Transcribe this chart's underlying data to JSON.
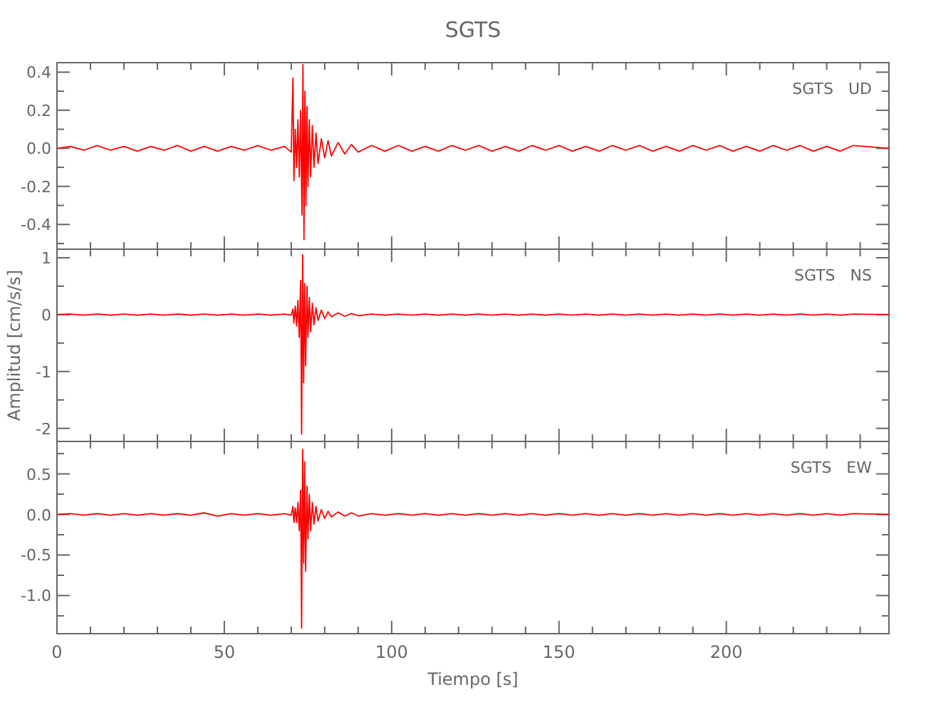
{
  "chart_data": [
    {
      "type": "line",
      "title": "SGTS",
      "annotations": [
        "SGTS   UD"
      ],
      "tick_labels": "y",
      "grid": false,
      "xlim": [
        0,
        248.6
      ],
      "ylim": [
        -0.53,
        0.45
      ],
      "xticks": [
        0,
        {
          "value": 10,
          "label": null
        },
        {
          "value": 20,
          "label": null
        },
        {
          "value": 30,
          "label": null
        },
        {
          "value": 40,
          "label": null
        },
        50,
        {
          "value": 60,
          "label": null
        },
        {
          "value": 70,
          "label": null
        },
        {
          "value": 80,
          "label": null
        },
        {
          "value": 90,
          "label": null
        },
        100,
        {
          "value": 110,
          "label": null
        },
        {
          "value": 120,
          "label": null
        },
        {
          "value": 130,
          "label": null
        },
        {
          "value": 140,
          "label": null
        },
        150,
        {
          "value": 160,
          "label": null
        },
        {
          "value": 170,
          "label": null
        },
        {
          "value": 180,
          "label": null
        },
        {
          "value": 190,
          "label": null
        },
        200,
        {
          "value": 210,
          "label": null
        },
        {
          "value": 220,
          "label": null
        },
        {
          "value": 230,
          "label": null
        },
        {
          "value": 240,
          "label": null
        }
      ],
      "yticks": [
        {
          "value": -0.5,
          "label": null
        },
        -0.4,
        {
          "value": -0.3,
          "label": null
        },
        -0.2,
        {
          "value": -0.1,
          "label": null
        },
        {
          "value": 0,
          "label": "0.0"
        },
        {
          "value": 0.1,
          "label": null
        },
        0.2,
        {
          "value": 0.3,
          "label": null
        },
        0.4
      ],
      "x": [
        0,
        4,
        8,
        12,
        16,
        20,
        24,
        28,
        32,
        36,
        40,
        44,
        48,
        52,
        56,
        60,
        64,
        68,
        70,
        70.5,
        70.8,
        71.2,
        71.6,
        72,
        72.4,
        72.8,
        73.2,
        73.5,
        73.8,
        74.1,
        74.4,
        74.7,
        75,
        75.4,
        75.8,
        76.3,
        76.8,
        77.4,
        78,
        79,
        80,
        81,
        82,
        84,
        86,
        88,
        90,
        94,
        98,
        102,
        106,
        110,
        114,
        118,
        122,
        126,
        130,
        134,
        138,
        142,
        146,
        150,
        154,
        158,
        162,
        166,
        170,
        174,
        178,
        182,
        186,
        190,
        194,
        198,
        202,
        206,
        210,
        214,
        218,
        222,
        226,
        230,
        234,
        238,
        248.6
      ],
      "series": [
        {
          "color": "#ff0000",
          "values": [
            0,
            0.01,
            -0.01,
            0.015,
            -0.01,
            0.01,
            -0.015,
            0.01,
            -0.01,
            0.015,
            -0.015,
            0.01,
            -0.015,
            0.01,
            -0.01,
            0.015,
            -0.01,
            0.01,
            -0.02,
            0.37,
            -0.17,
            0.1,
            -0.1,
            0.15,
            -0.15,
            0.2,
            -0.35,
            0.44,
            -0.48,
            0.3,
            -0.3,
            0.22,
            -0.2,
            0.15,
            -0.15,
            0.12,
            -0.1,
            0.08,
            -0.08,
            0.05,
            -0.05,
            0.04,
            -0.04,
            0.03,
            -0.03,
            0.02,
            -0.02,
            0.015,
            -0.015,
            0.015,
            -0.015,
            0.01,
            -0.015,
            0.015,
            -0.01,
            0.015,
            -0.015,
            0.01,
            -0.015,
            0.015,
            -0.01,
            0.015,
            -0.015,
            0.01,
            -0.015,
            0.015,
            -0.01,
            0.015,
            -0.015,
            0.01,
            -0.015,
            0.015,
            -0.01,
            0.015,
            -0.015,
            0.01,
            -0.015,
            0.015,
            -0.01,
            0.015,
            -0.015,
            0.01,
            -0.015,
            0.015,
            0
          ]
        }
      ]
    },
    {
      "type": "line",
      "ylabel": "Amplitud [cm/s/s]",
      "annotations": [
        "SGTS   NS"
      ],
      "tick_labels": "y",
      "grid": false,
      "xlim": [
        0,
        248.6
      ],
      "ylim": [
        -2.23,
        1.15
      ],
      "xticks": [
        0,
        {
          "value": 10,
          "label": null
        },
        {
          "value": 20,
          "label": null
        },
        {
          "value": 30,
          "label": null
        },
        {
          "value": 40,
          "label": null
        },
        50,
        {
          "value": 60,
          "label": null
        },
        {
          "value": 70,
          "label": null
        },
        {
          "value": 80,
          "label": null
        },
        {
          "value": 90,
          "label": null
        },
        100,
        {
          "value": 110,
          "label": null
        },
        {
          "value": 120,
          "label": null
        },
        {
          "value": 130,
          "label": null
        },
        {
          "value": 140,
          "label": null
        },
        150,
        {
          "value": 160,
          "label": null
        },
        {
          "value": 170,
          "label": null
        },
        {
          "value": 180,
          "label": null
        },
        {
          "value": 190,
          "label": null
        },
        200,
        {
          "value": 210,
          "label": null
        },
        {
          "value": 220,
          "label": null
        },
        {
          "value": 230,
          "label": null
        },
        {
          "value": 240,
          "label": null
        }
      ],
      "yticks": [
        -2,
        {
          "value": -1.5,
          "label": null
        },
        -1,
        {
          "value": -0.5,
          "label": null
        },
        0,
        {
          "value": 0.5,
          "label": null
        },
        1
      ],
      "x": [
        0,
        4,
        8,
        12,
        16,
        20,
        24,
        28,
        32,
        36,
        40,
        44,
        48,
        52,
        56,
        60,
        64,
        68,
        70,
        70.5,
        70.8,
        71.2,
        71.6,
        72,
        72.4,
        72.8,
        73.1,
        73.4,
        73.7,
        74,
        74.3,
        74.7,
        75,
        75.4,
        75.8,
        76.3,
        76.8,
        77.4,
        78,
        79,
        80,
        81,
        82,
        84,
        86,
        88,
        90,
        94,
        98,
        102,
        106,
        110,
        114,
        118,
        122,
        126,
        130,
        134,
        138,
        142,
        146,
        150,
        154,
        158,
        162,
        166,
        170,
        174,
        178,
        182,
        186,
        190,
        194,
        198,
        202,
        206,
        210,
        214,
        218,
        222,
        226,
        230,
        234,
        238,
        248.6
      ],
      "series": [
        {
          "color": "#ff0000",
          "values": [
            0,
            0.01,
            -0.01,
            0.01,
            -0.01,
            0.01,
            -0.01,
            0.01,
            -0.01,
            0.01,
            -0.01,
            0.01,
            -0.01,
            0.01,
            -0.01,
            0.01,
            -0.01,
            0.01,
            -0.01,
            0.1,
            -0.15,
            0.15,
            -0.2,
            0.25,
            -0.4,
            0.6,
            -2.1,
            1.05,
            -1.2,
            0.55,
            -0.9,
            0.5,
            -0.4,
            0.3,
            -0.3,
            0.2,
            -0.18,
            0.12,
            -0.1,
            0.08,
            -0.07,
            0.05,
            -0.04,
            0.03,
            -0.03,
            0.02,
            -0.02,
            0.01,
            -0.01,
            0.01,
            -0.01,
            0.01,
            -0.01,
            0.01,
            -0.01,
            0.01,
            -0.01,
            0.01,
            -0.01,
            0.01,
            -0.01,
            0.01,
            -0.01,
            0.01,
            -0.01,
            0.01,
            -0.01,
            0.01,
            -0.01,
            0.01,
            -0.01,
            0.01,
            -0.01,
            0.01,
            -0.01,
            0.01,
            -0.01,
            0.01,
            -0.01,
            0.01,
            -0.01,
            0.01,
            -0.01,
            0.01,
            0
          ]
        }
      ]
    },
    {
      "type": "line",
      "xlabel": "Tiempo [s]",
      "annotations": [
        "SGTS   EW"
      ],
      "grid": false,
      "xlim": [
        0,
        248.6
      ],
      "ylim": [
        -1.47,
        0.9
      ],
      "xticks": [
        0,
        {
          "value": 10,
          "label": null
        },
        {
          "value": 20,
          "label": null
        },
        {
          "value": 30,
          "label": null
        },
        {
          "value": 40,
          "label": null
        },
        50,
        {
          "value": 60,
          "label": null
        },
        {
          "value": 70,
          "label": null
        },
        {
          "value": 80,
          "label": null
        },
        {
          "value": 90,
          "label": null
        },
        100,
        {
          "value": 110,
          "label": null
        },
        {
          "value": 120,
          "label": null
        },
        {
          "value": 130,
          "label": null
        },
        {
          "value": 140,
          "label": null
        },
        150,
        {
          "value": 160,
          "label": null
        },
        {
          "value": 170,
          "label": null
        },
        {
          "value": 180,
          "label": null
        },
        {
          "value": 190,
          "label": null
        },
        200,
        {
          "value": 210,
          "label": null
        },
        {
          "value": 220,
          "label": null
        },
        {
          "value": 230,
          "label": null
        },
        {
          "value": 240,
          "label": null
        }
      ],
      "yticks": [
        {
          "value": -1.25,
          "label": null
        },
        {
          "value": -1,
          "label": "-1.0"
        },
        {
          "value": -0.75,
          "label": null
        },
        -0.5,
        {
          "value": -0.25,
          "label": null
        },
        {
          "value": 0,
          "label": "0.0"
        },
        {
          "value": 0.25,
          "label": null
        },
        0.5,
        {
          "value": 0.75,
          "label": null
        }
      ],
      "x": [
        0,
        4,
        8,
        12,
        16,
        20,
        24,
        28,
        32,
        36,
        40,
        44,
        48,
        52,
        56,
        60,
        64,
        68,
        70,
        70.5,
        70.8,
        71.2,
        71.6,
        72,
        72.4,
        72.8,
        73.1,
        73.4,
        73.7,
        74,
        74.3,
        74.7,
        75,
        75.4,
        75.8,
        76.3,
        76.8,
        77.4,
        78,
        79,
        80,
        81,
        82,
        84,
        86,
        88,
        90,
        94,
        98,
        102,
        106,
        110,
        114,
        118,
        122,
        126,
        130,
        134,
        138,
        142,
        146,
        150,
        154,
        158,
        162,
        166,
        170,
        174,
        178,
        182,
        186,
        190,
        194,
        198,
        202,
        206,
        210,
        214,
        218,
        222,
        226,
        230,
        234,
        238,
        248.6
      ],
      "series": [
        {
          "color": "#ff0000",
          "values": [
            0,
            0.01,
            -0.01,
            0.01,
            -0.01,
            0.01,
            -0.01,
            0.01,
            -0.01,
            0.01,
            -0.01,
            0.02,
            -0.02,
            0.01,
            -0.01,
            0.01,
            -0.01,
            0.01,
            -0.01,
            0.1,
            -0.1,
            0.08,
            -0.1,
            0.15,
            -0.2,
            0.3,
            -1.4,
            0.8,
            -0.6,
            0.65,
            -0.7,
            0.35,
            -0.3,
            0.25,
            -0.2,
            0.15,
            -0.12,
            0.1,
            -0.08,
            0.06,
            -0.05,
            0.04,
            -0.03,
            0.03,
            -0.02,
            0.02,
            -0.02,
            0.01,
            -0.01,
            0.01,
            -0.01,
            0.01,
            -0.01,
            0.01,
            -0.01,
            0.01,
            -0.01,
            0.01,
            -0.01,
            0.01,
            -0.01,
            0.01,
            -0.01,
            0.01,
            -0.01,
            0.01,
            -0.01,
            0.01,
            -0.01,
            0.01,
            -0.01,
            0.01,
            -0.01,
            0.01,
            -0.01,
            0.01,
            -0.01,
            0.01,
            -0.01,
            0.01,
            -0.01,
            0.01,
            -0.01,
            0.01,
            0
          ]
        }
      ]
    }
  ]
}
